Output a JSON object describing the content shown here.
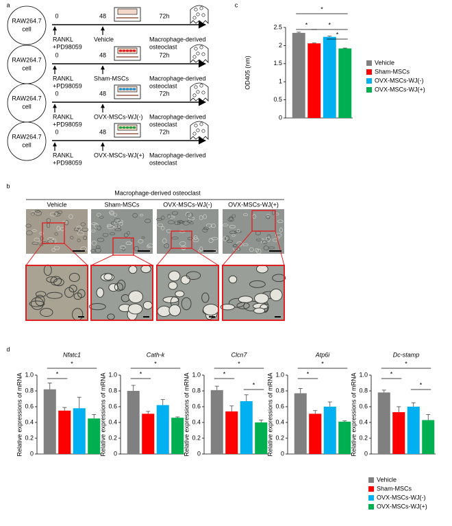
{
  "panel_labels": [
    "a",
    "b",
    "c",
    "d"
  ],
  "panel_a": {
    "rows": [
      {
        "cell": [
          "RAW264.7",
          "cell"
        ],
        "times": [
          "0",
          "48",
          "72h"
        ],
        "inducer": [
          "RANKL",
          "+PD98059"
        ],
        "treatment": "Vehicle",
        "outcome": [
          "Macrophage-derived",
          "osteoclast"
        ]
      },
      {
        "cell": [
          "RAW264.7",
          "cell"
        ],
        "times": [
          "0",
          "48",
          "72h"
        ],
        "inducer": [
          "RANKL",
          "+PD98059"
        ],
        "treatment": "Sham-MSCs",
        "outcome": [
          "Macrophage-derived",
          "osteoclast"
        ]
      },
      {
        "cell": [
          "RAW264.7",
          "cell"
        ],
        "times": [
          "0",
          "48",
          "72h"
        ],
        "inducer": [
          "RANKL",
          "+PD98059"
        ],
        "treatment": "OVX-MSCs-WJ(-)",
        "outcome": [
          "Macrophage-derived",
          "osteoclast"
        ]
      },
      {
        "cell": [
          "RAW264.7",
          "cell"
        ],
        "times": [
          "0",
          "48",
          "72h"
        ],
        "inducer": [
          "RANKL",
          "+PD98059"
        ],
        "treatment": "OVX-MSCs-WJ(+)",
        "outcome": [
          "Macrophage-derived",
          "osteoclast"
        ]
      }
    ]
  },
  "panel_b": {
    "title": "Macrophage-derived osteoclast",
    "columns": [
      "Vehicle",
      "Sham-MSCs",
      "OVX-MSCs-WJ(-)",
      "OVX-MSCs-WJ(+)"
    ]
  },
  "chart_data": [
    {
      "type": "bar",
      "categories": [
        "Vehicle",
        "Sham-MSCs",
        "OVX-MSCs-WJ(-)",
        "OVX-MSCs-WJ(+)"
      ],
      "values": [
        2.35,
        2.06,
        2.24,
        1.92
      ],
      "errors": [
        0.02,
        0.01,
        0.02,
        0.01
      ],
      "colors": [
        "#808080",
        "#ff0000",
        "#00b0f0",
        "#00b050"
      ],
      "y_label": "OD405 (nm)",
      "ylim": [
        0,
        2.5
      ],
      "yticks": [
        0,
        0.5,
        1,
        1.5,
        2,
        2.5
      ],
      "legend": "right",
      "significance": [
        {
          "between": [
            "Vehicle",
            "OVX-MSCs-WJ(+)"
          ],
          "label": "*"
        },
        {
          "between": [
            "Vehicle",
            "Sham-MSCs"
          ],
          "label": "*"
        },
        {
          "between": [
            "Sham-MSCs",
            "OVX-MSCs-WJ(+)"
          ],
          "label": "*"
        },
        {
          "between": [
            "OVX-MSCs-WJ(-)",
            "OVX-MSCs-WJ(+)"
          ],
          "label": "*"
        }
      ]
    },
    {
      "type": "bar",
      "title": "Nfatc1",
      "categories": [
        "Vehicle",
        "Sham-MSCs",
        "OVX-MSCs-WJ(-)",
        "OVX-MSCs-WJ(+)"
      ],
      "values": [
        0.82,
        0.55,
        0.58,
        0.45
      ],
      "errors": [
        0.08,
        0.04,
        0.14,
        0.05
      ],
      "colors": [
        "#808080",
        "#ff0000",
        "#00b0f0",
        "#00b050"
      ],
      "y_label": "Relative expressions of mRNA",
      "ylim": [
        0,
        1
      ],
      "yticks": [
        0,
        0.2,
        0.4,
        0.6,
        0.8,
        {
          "value": 1,
          "label": "1.0"
        }
      ],
      "legend": "bottom-right",
      "significance": [
        {
          "between": [
            "Vehicle",
            "Sham-MSCs"
          ],
          "label": "*"
        },
        {
          "between": [
            "Vehicle",
            "OVX-MSCs-WJ(+)"
          ],
          "label": "*"
        }
      ]
    },
    {
      "type": "bar",
      "title": "Cath-k",
      "categories": [
        "Vehicle",
        "Sham-MSCs",
        "OVX-MSCs-WJ(-)",
        "OVX-MSCs-WJ(+)"
      ],
      "values": [
        0.8,
        0.51,
        0.62,
        0.46
      ],
      "errors": [
        0.07,
        0.03,
        0.07,
        0.01
      ],
      "colors": [
        "#808080",
        "#ff0000",
        "#00b0f0",
        "#00b050"
      ],
      "y_label": "Relative expressions of mRNA",
      "ylim": [
        0,
        1
      ],
      "yticks": [
        0,
        0.2,
        0.4,
        0.6,
        0.8,
        {
          "value": 1,
          "label": "1.0"
        }
      ],
      "significance": [
        {
          "between": [
            "Vehicle",
            "Sham-MSCs"
          ],
          "label": "*"
        },
        {
          "between": [
            "Vehicle",
            "OVX-MSCs-WJ(+)"
          ],
          "label": "*"
        }
      ]
    },
    {
      "type": "bar",
      "title": "Clcn7",
      "categories": [
        "Vehicle",
        "Sham-MSCs",
        "OVX-MSCs-WJ(-)",
        "OVX-MSCs-WJ(+)"
      ],
      "values": [
        0.81,
        0.54,
        0.67,
        0.4
      ],
      "errors": [
        0.05,
        0.07,
        0.08,
        0.03
      ],
      "colors": [
        "#808080",
        "#ff0000",
        "#00b0f0",
        "#00b050"
      ],
      "y_label": "Relative expressions of mRNA",
      "ylim": [
        0,
        1
      ],
      "yticks": [
        0,
        0.2,
        0.4,
        0.6,
        0.8,
        {
          "value": 1,
          "label": "1.0"
        }
      ],
      "significance": [
        {
          "between": [
            "Vehicle",
            "Sham-MSCs"
          ],
          "label": "*"
        },
        {
          "between": [
            "Vehicle",
            "OVX-MSCs-WJ(+)"
          ],
          "label": "*"
        },
        {
          "between": [
            "OVX-MSCs-WJ(-)",
            "OVX-MSCs-WJ(+)"
          ],
          "label": "*"
        }
      ]
    },
    {
      "type": "bar",
      "title": "Atp6i",
      "categories": [
        "Vehicle",
        "Sham-MSCs",
        "OVX-MSCs-WJ(-)",
        "OVX-MSCs-WJ(+)"
      ],
      "values": [
        0.77,
        0.51,
        0.6,
        0.41
      ],
      "errors": [
        0.06,
        0.04,
        0.06,
        0.01
      ],
      "colors": [
        "#808080",
        "#ff0000",
        "#00b0f0",
        "#00b050"
      ],
      "y_label": "Relative expressions of mRNA",
      "ylim": [
        0,
        1
      ],
      "yticks": [
        0,
        0.2,
        0.4,
        0.6,
        0.8,
        {
          "value": 1,
          "label": "1.0"
        }
      ],
      "significance": [
        {
          "between": [
            "Vehicle",
            "Sham-MSCs"
          ],
          "label": "*"
        },
        {
          "between": [
            "Vehicle",
            "OVX-MSCs-WJ(+)"
          ],
          "label": "*"
        }
      ]
    },
    {
      "type": "bar",
      "title": "Dc-stamp",
      "categories": [
        "Vehicle",
        "Sham-MSCs",
        "OVX-MSCs-WJ(-)",
        "OVX-MSCs-WJ(+)"
      ],
      "values": [
        0.78,
        0.53,
        0.6,
        0.43
      ],
      "errors": [
        0.03,
        0.07,
        0.05,
        0.07
      ],
      "colors": [
        "#808080",
        "#ff0000",
        "#00b0f0",
        "#00b050"
      ],
      "y_label": "Relative expressions of mRNA",
      "ylim": [
        0,
        1
      ],
      "yticks": [
        0,
        0.2,
        0.4,
        0.6,
        0.8,
        {
          "value": 1,
          "label": "1.0"
        }
      ],
      "significance": [
        {
          "between": [
            "Vehicle",
            "Sham-MSCs"
          ],
          "label": "*"
        },
        {
          "between": [
            "Vehicle",
            "OVX-MSCs-WJ(+)"
          ],
          "label": "*"
        },
        {
          "between": [
            "OVX-MSCs-WJ(-)",
            "OVX-MSCs-WJ(+)"
          ],
          "label": "*"
        }
      ]
    }
  ]
}
